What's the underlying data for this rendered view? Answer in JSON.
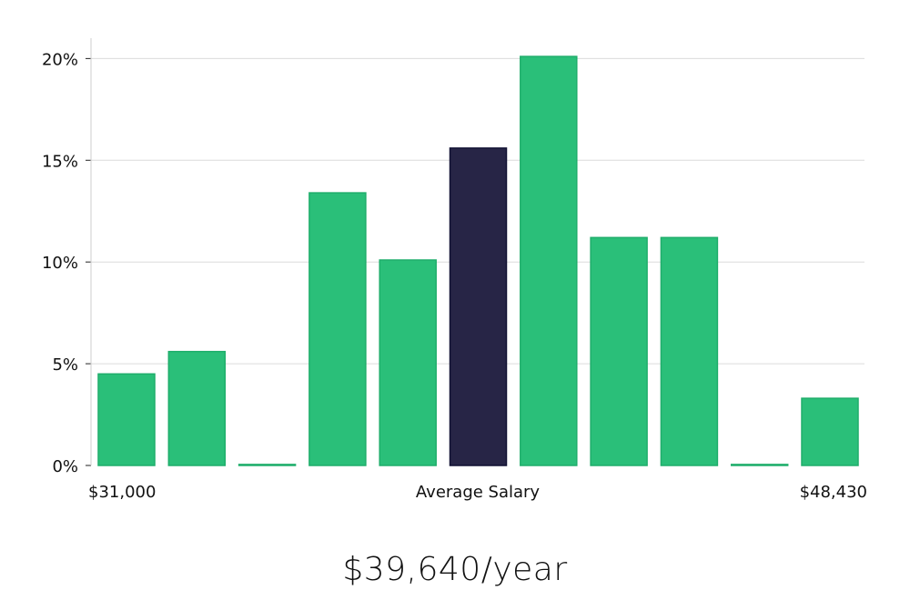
{
  "chart_data": {
    "type": "bar",
    "title": "",
    "xlabel": "Average Salary",
    "ylabel": "",
    "x_range_labels": {
      "min": "$31,000",
      "max": "$48,430"
    },
    "ylim": [
      0,
      21
    ],
    "yticks": [
      0,
      5,
      10,
      15,
      20
    ],
    "ytick_labels": [
      "0%",
      "5%",
      "10%",
      "15%",
      "20%"
    ],
    "grid": true,
    "values": [
      4.5,
      5.6,
      0.05,
      13.4,
      10.1,
      15.6,
      20.1,
      11.2,
      11.2,
      0.05,
      3.3
    ],
    "highlight_index": 5,
    "colors": {
      "bar": "#2abf79",
      "bar_edge": "#1fae6b",
      "highlight": "#272546",
      "highlight_edge": "#111133"
    }
  },
  "summary": {
    "salary_text": "$39,640/year"
  }
}
